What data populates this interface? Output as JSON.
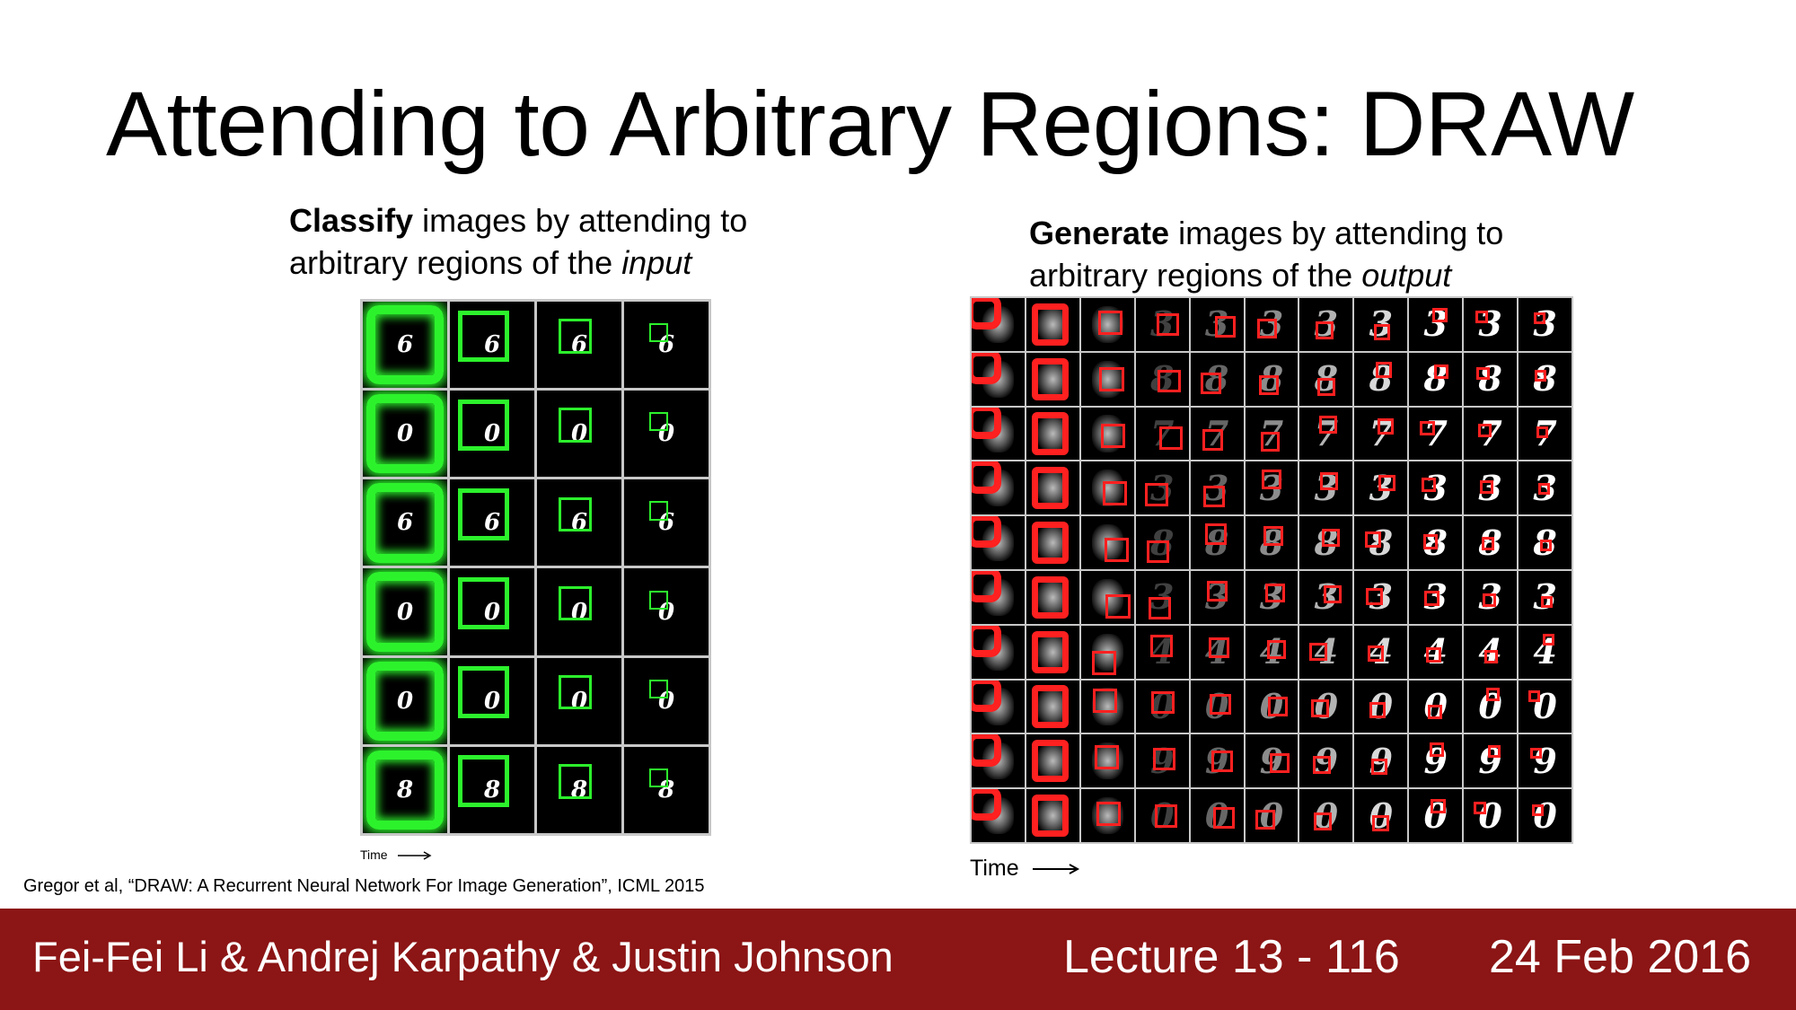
{
  "slide": {
    "title": "Attending to Arbitrary Regions: DRAW",
    "left_caption": {
      "bold": "Classify",
      "line1_rest": " images by attending to",
      "line2_prefix": "arbitrary regions of the ",
      "italic": "input"
    },
    "right_caption": {
      "bold": "Generate",
      "line1_rest": " images by attending to",
      "line2_prefix": "arbitrary regions of the ",
      "italic": "output"
    },
    "left_figure": {
      "time_label": "Time",
      "rows": [
        "6",
        "0",
        "6",
        "0",
        "0",
        "8"
      ]
    },
    "right_figure": {
      "time_label": "Time",
      "rows": [
        "3",
        "8",
        "7",
        "3",
        "8",
        "3",
        "4",
        "0",
        "9",
        "0"
      ]
    },
    "citation": "Gregor et al, “DRAW: A Recurrent Neural Network For Image Generation”, ICML 2015",
    "footer": {
      "authors": "Fei-Fei Li & Andrej Karpathy & Justin Johnson",
      "lecture": "Lecture 13 - 116",
      "date": "24 Feb 2016"
    },
    "colors": {
      "footer_bg": "#8c1515",
      "attention_green": "#2cf22c",
      "attention_red": "#ff2020"
    }
  }
}
